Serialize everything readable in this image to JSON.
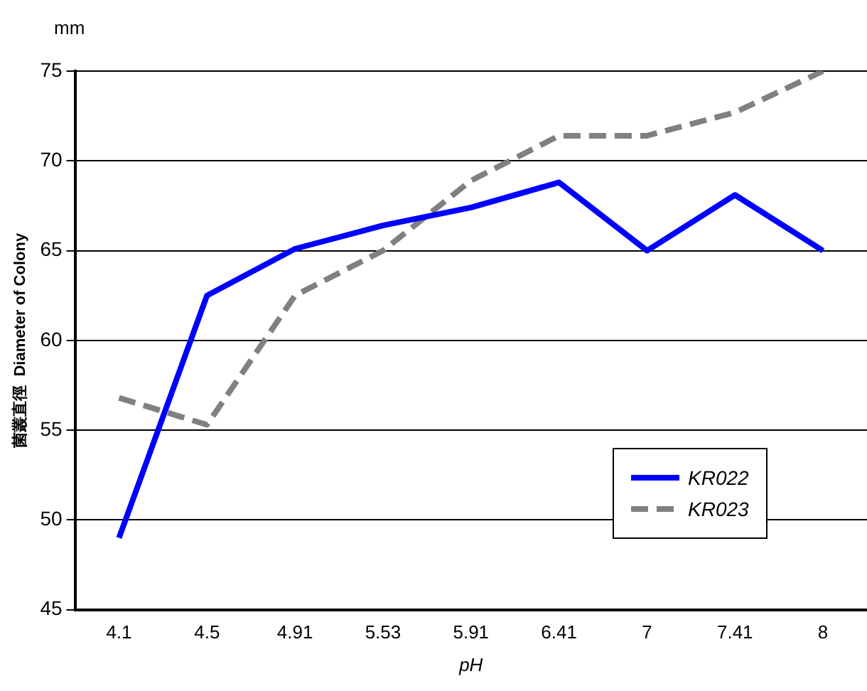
{
  "chart_data": {
    "type": "line",
    "xlabel": "pH",
    "ylabel": "菌叢直徑  Diameter of Colony",
    "annotations": [
      "mm"
    ],
    "categories": [
      "4.1",
      "4.5",
      "4.91",
      "5.53",
      "5.91",
      "6.41",
      "7",
      "7.41",
      "8"
    ],
    "series": [
      {
        "name": "KR022",
        "color": "#0000ff",
        "line_style": "solid",
        "values": [
          49.0,
          62.5,
          65.1,
          66.4,
          67.4,
          68.8,
          65.0,
          68.1,
          65.0
        ]
      },
      {
        "name": "KR023",
        "color": "#808080",
        "line_style": "dashed",
        "values": [
          56.8,
          55.3,
          62.5,
          65.0,
          68.9,
          71.4,
          71.4,
          72.7,
          75.0
        ]
      }
    ],
    "ylim": [
      45,
      75
    ],
    "yticks": [
      45,
      50,
      55,
      60,
      65,
      70,
      75
    ],
    "grid": "y",
    "legend": "bottom right",
    "marker": "none"
  }
}
